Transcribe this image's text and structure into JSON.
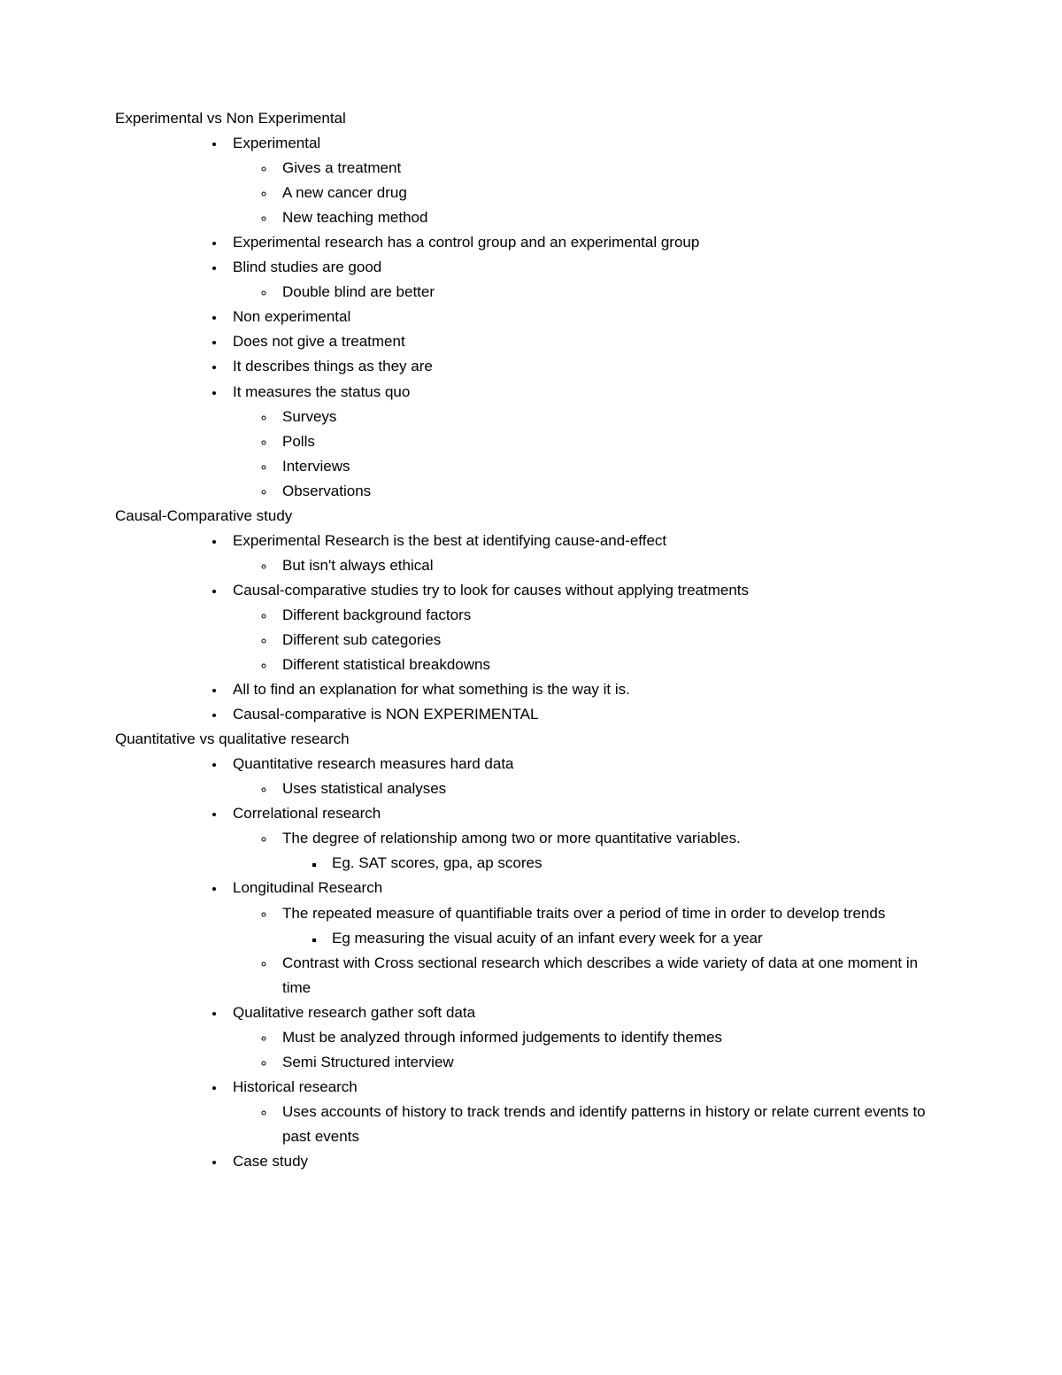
{
  "sections": [
    {
      "heading": "Experimental vs Non Experimental",
      "items": [
        {
          "text": "Experimental",
          "children": [
            {
              "text": "Gives a treatment"
            },
            {
              "text": "A new cancer drug"
            },
            {
              "text": "New teaching method"
            }
          ]
        },
        {
          "text": "Experimental research has a control group and an experimental group"
        },
        {
          "text": "Blind studies are good",
          "children": [
            {
              "text": "Double blind are better"
            }
          ]
        },
        {
          "text": "Non experimental"
        },
        {
          "text": "Does not give a treatment"
        },
        {
          "text": "It describes things as they are"
        },
        {
          "text": "It measures the status quo",
          "children": [
            {
              "text": "Surveys"
            },
            {
              "text": "Polls"
            },
            {
              "text": "Interviews"
            },
            {
              "text": "Observations"
            }
          ]
        }
      ]
    },
    {
      "heading": "Causal-Comparative study",
      "items": [
        {
          "text": "Experimental Research is the best at identifying cause-and-effect",
          "children": [
            {
              "text": "But isn't always ethical"
            }
          ]
        },
        {
          "text": "Causal-comparative studies try to look for causes without applying treatments",
          "children": [
            {
              "text": "Different background factors"
            },
            {
              "text": "Different sub categories"
            },
            {
              "text": "Different statistical breakdowns"
            }
          ]
        },
        {
          "text": "All to find an explanation for what something is the way it is."
        },
        {
          "text": "Causal-comparative is NON EXPERIMENTAL"
        }
      ]
    },
    {
      "heading": "Quantitative vs qualitative research",
      "items": [
        {
          "text": "Quantitative research measures hard data",
          "children": [
            {
              "text": "Uses statistical analyses"
            }
          ]
        },
        {
          "text": "Correlational research",
          "children": [
            {
              "text": "The degree of relationship among two or more quantitative variables.",
              "children": [
                {
                  "text": "Eg. SAT scores, gpa, ap scores"
                }
              ]
            }
          ]
        },
        {
          "text": "Longitudinal Research",
          "children": [
            {
              "text": "The repeated measure of quantifiable traits over a period of time in order to develop trends",
              "children": [
                {
                  "text": "Eg measuring the visual acuity of an infant every week for a year"
                }
              ]
            },
            {
              "text": "Contrast with Cross sectional research which describes a wide variety of data at one moment in time"
            }
          ]
        },
        {
          "text": "Qualitative research gather soft data",
          "children": [
            {
              "text": "Must be analyzed through informed judgements to identify themes"
            },
            {
              "text": "Semi Structured interview"
            }
          ]
        },
        {
          "text": "Historical research",
          "children": [
            {
              "text": "Uses accounts of history to track trends and identify patterns in history or relate current events to past events"
            }
          ]
        },
        {
          "text": "Case study"
        }
      ]
    }
  ]
}
